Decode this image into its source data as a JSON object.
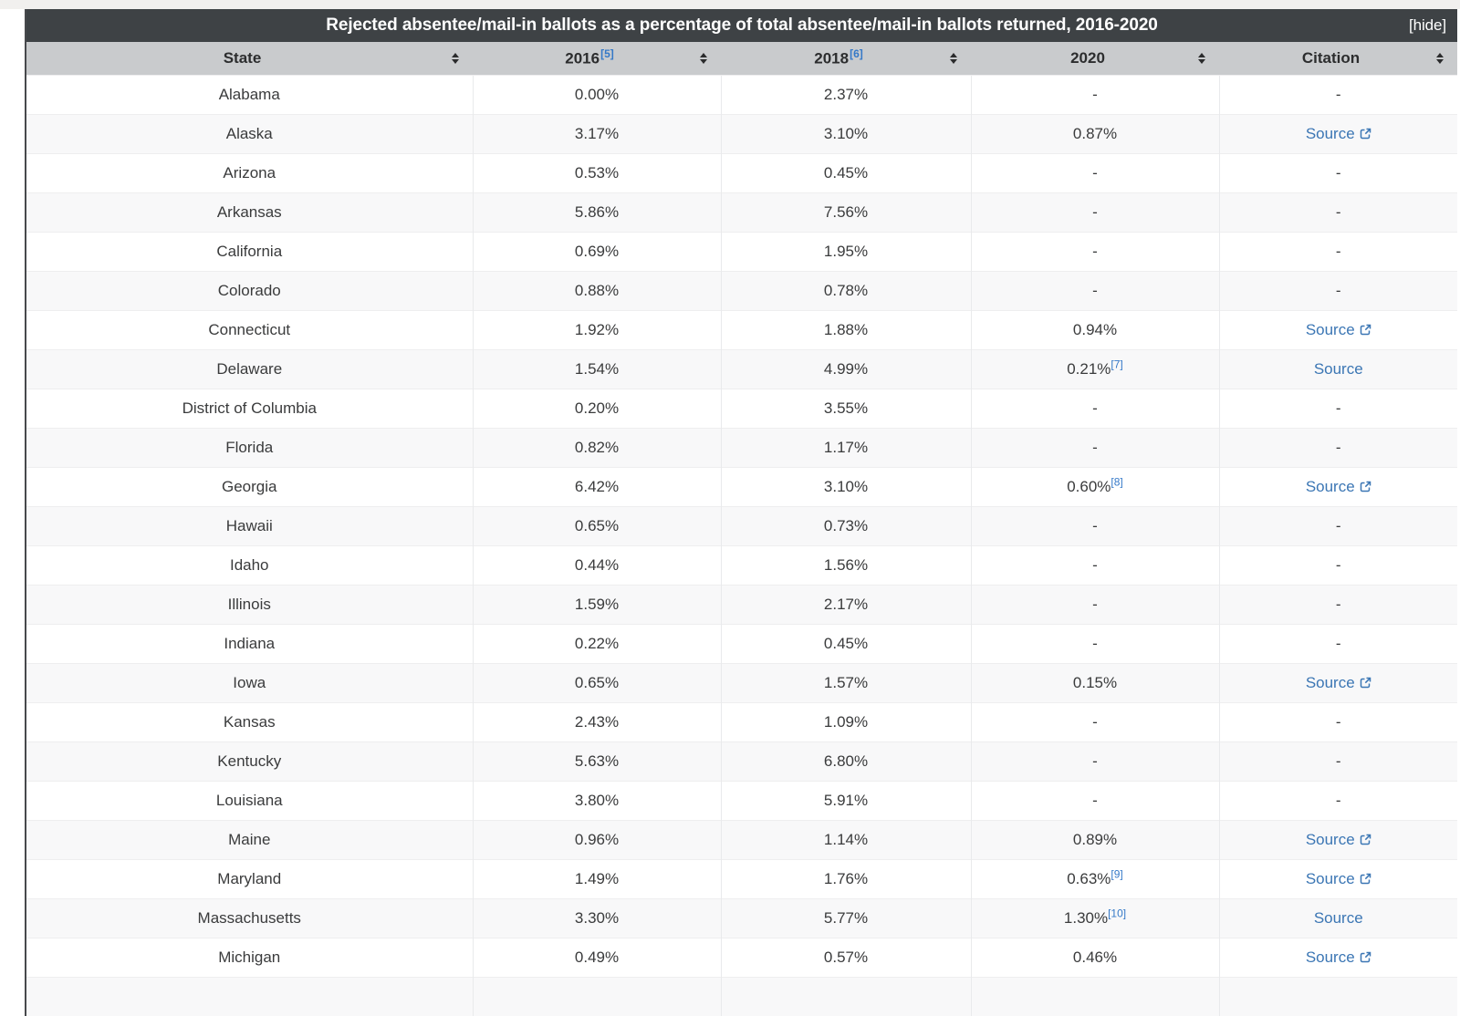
{
  "title_bar": {
    "title": "Rejected absentee/mail-in ballots as a percentage of total absentee/mail-in ballots returned, 2016-2020",
    "hide_label": "[hide]"
  },
  "columns": [
    {
      "label": "State",
      "sup": null
    },
    {
      "label": "2016",
      "sup": "[5]"
    },
    {
      "label": "2018",
      "sup": "[6]"
    },
    {
      "label": "2020",
      "sup": null
    },
    {
      "label": "Citation",
      "sup": null
    }
  ],
  "colors": {
    "title_bar_bg": "#3e4245",
    "header_row_bg": "#c9cbcd",
    "alt_row_bg": "#f8f8f9",
    "link_blue": "#3b76b4",
    "footnote_blue": "#3579c8"
  },
  "icons": {
    "sort": "sort-up-down-diamond",
    "external": "external-link-box-arrow"
  },
  "chart_data": {
    "type": "table",
    "title": "Rejected absentee/mail-in ballots as a percentage of total absentee/mail-in ballots returned, 2016-2020",
    "categories": [
      "State",
      "2016",
      "2018",
      "2020",
      "Citation"
    ]
  },
  "rows": [
    {
      "state": "Alabama",
      "y2016": "0.00%",
      "y2018": "2.37%",
      "y2020": "-",
      "y2020_sup": null,
      "citation": "-",
      "citation_external": false
    },
    {
      "state": "Alaska",
      "y2016": "3.17%",
      "y2018": "3.10%",
      "y2020": "0.87%",
      "y2020_sup": null,
      "citation": "Source",
      "citation_external": true
    },
    {
      "state": "Arizona",
      "y2016": "0.53%",
      "y2018": "0.45%",
      "y2020": "-",
      "y2020_sup": null,
      "citation": "-",
      "citation_external": false
    },
    {
      "state": "Arkansas",
      "y2016": "5.86%",
      "y2018": "7.56%",
      "y2020": "-",
      "y2020_sup": null,
      "citation": "-",
      "citation_external": false
    },
    {
      "state": "California",
      "y2016": "0.69%",
      "y2018": "1.95%",
      "y2020": "-",
      "y2020_sup": null,
      "citation": "-",
      "citation_external": false
    },
    {
      "state": "Colorado",
      "y2016": "0.88%",
      "y2018": "0.78%",
      "y2020": "-",
      "y2020_sup": null,
      "citation": "-",
      "citation_external": false
    },
    {
      "state": "Connecticut",
      "y2016": "1.92%",
      "y2018": "1.88%",
      "y2020": "0.94%",
      "y2020_sup": null,
      "citation": "Source",
      "citation_external": true
    },
    {
      "state": "Delaware",
      "y2016": "1.54%",
      "y2018": "4.99%",
      "y2020": "0.21%",
      "y2020_sup": "[7]",
      "citation": "Source",
      "citation_external": false
    },
    {
      "state": "District of Columbia",
      "y2016": "0.20%",
      "y2018": "3.55%",
      "y2020": "-",
      "y2020_sup": null,
      "citation": "-",
      "citation_external": false
    },
    {
      "state": "Florida",
      "y2016": "0.82%",
      "y2018": "1.17%",
      "y2020": "-",
      "y2020_sup": null,
      "citation": "-",
      "citation_external": false
    },
    {
      "state": "Georgia",
      "y2016": "6.42%",
      "y2018": "3.10%",
      "y2020": "0.60%",
      "y2020_sup": "[8]",
      "citation": "Source",
      "citation_external": true
    },
    {
      "state": "Hawaii",
      "y2016": "0.65%",
      "y2018": "0.73%",
      "y2020": "-",
      "y2020_sup": null,
      "citation": "-",
      "citation_external": false
    },
    {
      "state": "Idaho",
      "y2016": "0.44%",
      "y2018": "1.56%",
      "y2020": "-",
      "y2020_sup": null,
      "citation": "-",
      "citation_external": false
    },
    {
      "state": "Illinois",
      "y2016": "1.59%",
      "y2018": "2.17%",
      "y2020": "-",
      "y2020_sup": null,
      "citation": "-",
      "citation_external": false
    },
    {
      "state": "Indiana",
      "y2016": "0.22%",
      "y2018": "0.45%",
      "y2020": "-",
      "y2020_sup": null,
      "citation": "-",
      "citation_external": false
    },
    {
      "state": "Iowa",
      "y2016": "0.65%",
      "y2018": "1.57%",
      "y2020": "0.15%",
      "y2020_sup": null,
      "citation": "Source",
      "citation_external": true
    },
    {
      "state": "Kansas",
      "y2016": "2.43%",
      "y2018": "1.09%",
      "y2020": "-",
      "y2020_sup": null,
      "citation": "-",
      "citation_external": false
    },
    {
      "state": "Kentucky",
      "y2016": "5.63%",
      "y2018": "6.80%",
      "y2020": "-",
      "y2020_sup": null,
      "citation": "-",
      "citation_external": false
    },
    {
      "state": "Louisiana",
      "y2016": "3.80%",
      "y2018": "5.91%",
      "y2020": "-",
      "y2020_sup": null,
      "citation": "-",
      "citation_external": false
    },
    {
      "state": "Maine",
      "y2016": "0.96%",
      "y2018": "1.14%",
      "y2020": "0.89%",
      "y2020_sup": null,
      "citation": "Source",
      "citation_external": true
    },
    {
      "state": "Maryland",
      "y2016": "1.49%",
      "y2018": "1.76%",
      "y2020": "0.63%",
      "y2020_sup": "[9]",
      "citation": "Source",
      "citation_external": true
    },
    {
      "state": "Massachusetts",
      "y2016": "3.30%",
      "y2018": "5.77%",
      "y2020": "1.30%",
      "y2020_sup": "[10]",
      "citation": "Source",
      "citation_external": false
    },
    {
      "state": "Michigan",
      "y2016": "0.49%",
      "y2018": "0.57%",
      "y2020": "0.46%",
      "y2020_sup": null,
      "citation": "Source",
      "citation_external": true
    }
  ]
}
